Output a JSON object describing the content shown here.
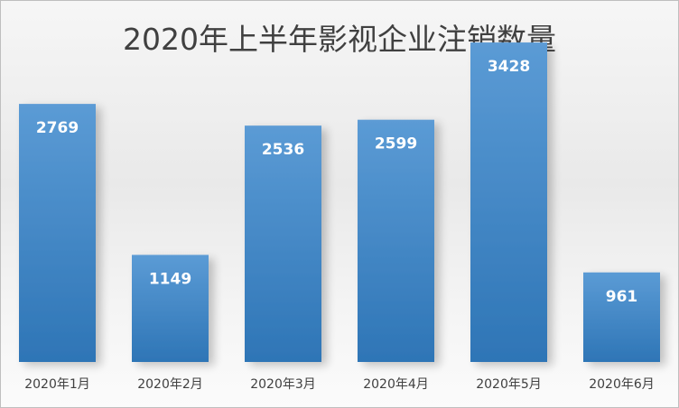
{
  "chart_data": {
    "type": "bar",
    "title": "2020年上半年影视企业注销数量",
    "categories": [
      "2020年1月",
      "2020年2月",
      "2020年3月",
      "2020年4月",
      "2020年5月",
      "2020年6月"
    ],
    "values": [
      2769,
      1149,
      2536,
      2599,
      3428,
      961
    ],
    "xlabel": "",
    "ylabel": "",
    "ylim": [
      0,
      3700
    ],
    "grid": false,
    "legend": "none",
    "data_labels": "inside-end",
    "colors": {
      "bar_top": "#5b9bd5",
      "bar_bottom": "#2e75b6",
      "label": "#ffffff",
      "title": "#404040"
    }
  }
}
